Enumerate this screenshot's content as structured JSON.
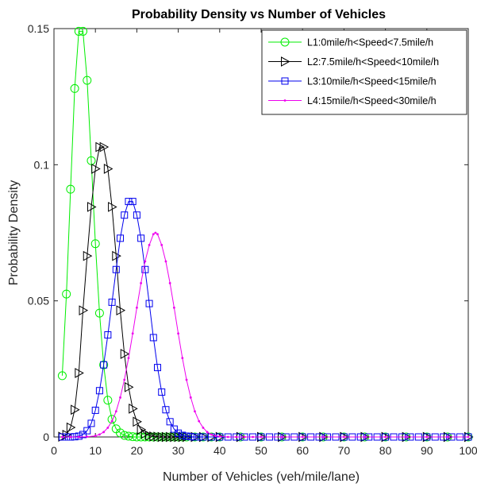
{
  "chart_data": {
    "type": "line",
    "title": "Probability Density vs Number of Vehicles",
    "xlabel": "Number of Vehicles (veh/mile/lane)",
    "ylabel": "Probability Density",
    "xlim": [
      0,
      100
    ],
    "ylim": [
      0,
      0.15
    ],
    "xticks": [
      "0",
      "10",
      "20",
      "30",
      "40",
      "50",
      "60",
      "70",
      "80",
      "90",
      "100"
    ],
    "yticks": [
      "0",
      "0.05",
      "0.1",
      "0.15"
    ],
    "grid": false,
    "legend_position": "top-right",
    "series": [
      {
        "name": "L1:0mile/h<Speed<7.5mile/h",
        "color": "#00ee00",
        "marker": "circle",
        "x": [
          2,
          3,
          4,
          5,
          6,
          7,
          8,
          9,
          10,
          11,
          12,
          13,
          14,
          15,
          16,
          17,
          18,
          19,
          20,
          21,
          22,
          23,
          24,
          25,
          26,
          27,
          28,
          29,
          30,
          31,
          32,
          34,
          36,
          38,
          40,
          45,
          50,
          55,
          60,
          65,
          70,
          75,
          80,
          85,
          90,
          95,
          100
        ],
        "y": [
          0.0225,
          0.0525,
          0.091,
          0.128,
          0.149,
          0.149,
          0.131,
          0.1015,
          0.071,
          0.0455,
          0.0265,
          0.0135,
          0.0065,
          0.003,
          0.0015,
          0.0006,
          0.0003,
          0.0001,
          0.0,
          0.0,
          0.0,
          0.0,
          0.0,
          0.0,
          0.0,
          0.0,
          0.0,
          0.0,
          0.0,
          0.0,
          0.0,
          0.0,
          0.0,
          0.0,
          0.0,
          0.0,
          0.0,
          0.0,
          0.0,
          0.0,
          0.0,
          0.0,
          0.0,
          0.0,
          0.0,
          0.0,
          0.0
        ]
      },
      {
        "name": "L2:7.5mile/h<Speed<10mile/h",
        "color": "#000000",
        "marker": "triangle-right",
        "x": [
          2,
          3,
          4,
          5,
          6,
          7,
          8,
          9,
          10,
          11,
          12,
          13,
          14,
          15,
          16,
          17,
          18,
          19,
          20,
          21,
          22,
          23,
          24,
          25,
          26,
          27,
          28,
          29,
          30,
          31,
          32,
          34,
          36,
          38,
          40,
          45,
          50,
          55,
          60,
          65,
          70,
          75,
          80,
          85,
          90,
          95,
          100
        ],
        "y": [
          0.0001,
          0.0008,
          0.0035,
          0.01,
          0.0235,
          0.0465,
          0.0665,
          0.0845,
          0.0985,
          0.1065,
          0.1065,
          0.0985,
          0.0845,
          0.0665,
          0.0465,
          0.0305,
          0.0183,
          0.0104,
          0.0056,
          0.0027,
          0.0012,
          0.0005,
          0.0002,
          0.0001,
          0.0,
          0.0,
          0.0,
          0.0,
          0.0,
          0.0,
          0.0,
          0.0,
          0.0,
          0.0,
          0.0,
          0.0,
          0.0,
          0.0,
          0.0,
          0.0,
          0.0,
          0.0,
          0.0,
          0.0,
          0.0,
          0.0,
          0.0
        ]
      },
      {
        "name": "L3:10mile/h<Speed<15mile/h",
        "color": "#0000ee",
        "marker": "square",
        "x": [
          2,
          3,
          4,
          5,
          6,
          7,
          8,
          9,
          10,
          11,
          12,
          13,
          14,
          15,
          16,
          17,
          18,
          19,
          20,
          21,
          22,
          23,
          24,
          25,
          26,
          27,
          28,
          29,
          30,
          31,
          32,
          33,
          34,
          35,
          36,
          38,
          40,
          42,
          44,
          46,
          48,
          50,
          52,
          54,
          56,
          58,
          60,
          62,
          64,
          66,
          68,
          70,
          72,
          74,
          76,
          78,
          80,
          82,
          84,
          86,
          88,
          90,
          92,
          94,
          96,
          98,
          100
        ],
        "y": [
          0.0,
          0.0,
          0.0,
          0.0001,
          0.0003,
          0.0009,
          0.0023,
          0.005,
          0.0098,
          0.017,
          0.0265,
          0.0375,
          0.0495,
          0.0615,
          0.073,
          0.0815,
          0.0865,
          0.0865,
          0.0815,
          0.073,
          0.0615,
          0.049,
          0.0365,
          0.0255,
          0.0165,
          0.01,
          0.0056,
          0.0029,
          0.0014,
          0.0006,
          0.0003,
          0.0001,
          0.0,
          0.0,
          0.0,
          0.0,
          0.0,
          0.0,
          0.0,
          0.0,
          0.0,
          0.0,
          0.0,
          0.0,
          0.0,
          0.0,
          0.0,
          0.0,
          0.0,
          0.0,
          0.0,
          0.0,
          0.0,
          0.0,
          0.0,
          0.0,
          0.0,
          0.0,
          0.0,
          0.0,
          0.0,
          0.0,
          0.0,
          0.0,
          0.0,
          0.0,
          0.0
        ]
      },
      {
        "name": "L4:15mile/h<Speed<30mile/h",
        "color": "#ee00ee",
        "marker": "dot",
        "x": [
          2,
          4,
          6,
          8,
          10,
          11,
          12,
          13,
          14,
          15,
          16,
          17,
          18,
          19,
          20,
          21,
          22,
          23,
          24,
          24.5,
          25,
          26,
          27,
          28,
          29,
          30,
          31,
          32,
          33,
          34,
          35,
          36,
          37,
          38,
          39,
          40,
          42,
          44,
          46,
          48,
          50,
          55,
          60,
          65,
          70,
          75,
          80,
          85,
          90,
          95,
          100
        ],
        "y": [
          0.0,
          0.0,
          0.0,
          0.0001,
          0.0004,
          0.0009,
          0.0018,
          0.0034,
          0.0058,
          0.0094,
          0.0145,
          0.021,
          0.029,
          0.038,
          0.0475,
          0.0565,
          0.0645,
          0.0705,
          0.0745,
          0.075,
          0.0745,
          0.0705,
          0.0645,
          0.0565,
          0.0475,
          0.038,
          0.029,
          0.021,
          0.0145,
          0.0094,
          0.0058,
          0.0034,
          0.0018,
          0.0009,
          0.0004,
          0.0002,
          0.0,
          0.0,
          0.0,
          0.0,
          0.0,
          0.0,
          0.0,
          0.0,
          0.0,
          0.0,
          0.0,
          0.0,
          0.0,
          0.0,
          0.0
        ]
      }
    ]
  }
}
